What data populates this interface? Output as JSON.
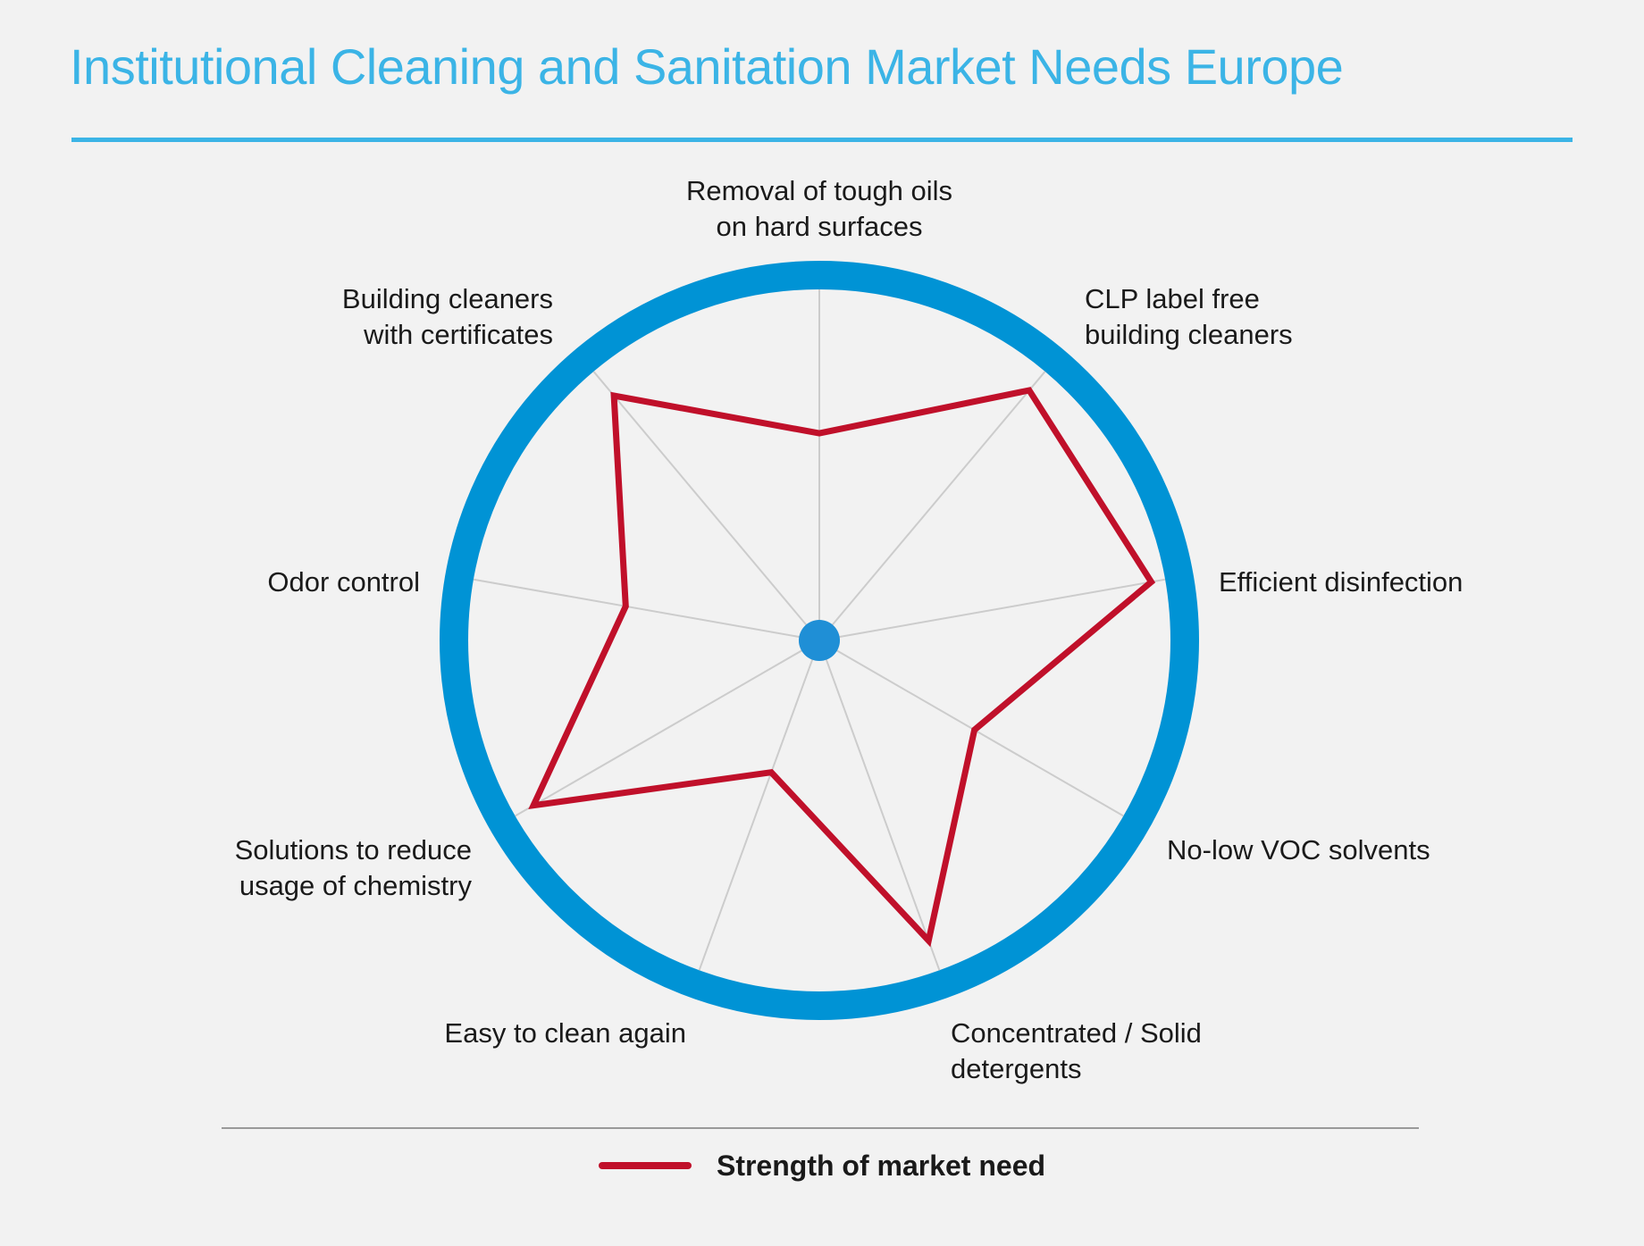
{
  "title": "Institutional Cleaning and Sanitation Market Needs Europe",
  "colors": {
    "title": "#3bb4e6",
    "ring": "#0093d5",
    "series": "#c0102a",
    "spoke": "#cccccc",
    "hub": "#1f8fd6"
  },
  "chart_data": {
    "type": "radar",
    "title": "Institutional Cleaning and Sanitation Market Needs Europe",
    "rlim": [
      0,
      1
    ],
    "grid": false,
    "legend_placement": "bottom",
    "categories": [
      "Removal of tough oils on hard surfaces",
      "CLP label free building cleaners",
      "Efficient disinfection",
      "No-low VOC solvents",
      "Concentrated / Solid detergents",
      "Easy to clean again",
      "Solutions to reduce usage of chemistry",
      "Odor control",
      "Building cleaners with certificates"
    ],
    "category_lines": [
      [
        "Removal of tough oils",
        "on hard surfaces"
      ],
      [
        "CLP label free",
        "building cleaners"
      ],
      [
        "Efficient disinfection"
      ],
      [
        "No-low VOC solvents"
      ],
      [
        "Concentrated / Solid",
        "detergents"
      ],
      [
        "Easy to clean again"
      ],
      [
        "Solutions to reduce",
        "usage of chemistry"
      ],
      [
        "Odor control"
      ],
      [
        "Building cleaners",
        "with certificates"
      ]
    ],
    "series": [
      {
        "name": "Strength of market need",
        "values": [
          0.59,
          0.93,
          0.96,
          0.51,
          0.91,
          0.4,
          0.94,
          0.56,
          0.91
        ]
      }
    ]
  },
  "legend": {
    "label": "Strength of market need"
  }
}
